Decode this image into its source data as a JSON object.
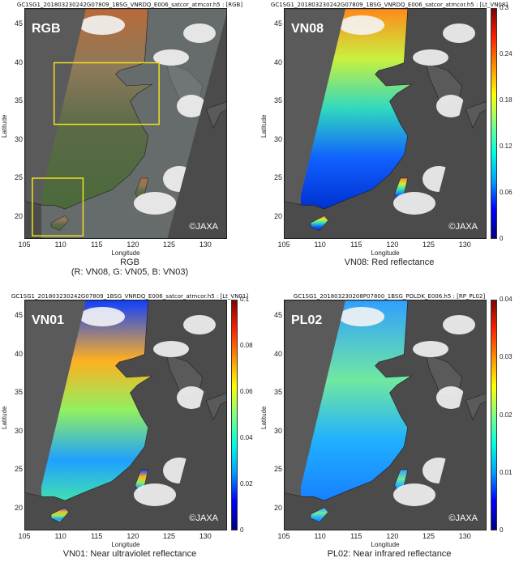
{
  "panels": [
    {
      "filename": "GC1SG1_201803230242G07809_1BSG_VNRDQ_E006_satcor_atmcor.h5 : [RGB]",
      "band": "RGB",
      "credit": "©JAXA",
      "caption": "RGB",
      "caption2": "(R: VN08, G: VN05, B: VN03)",
      "colorbar": null
    },
    {
      "filename": "GC1SG1_201803230242G07809_1BSG_VNRDQ_E006_satcor_atmcor.h5 : [Lt_VN08]",
      "band": "VN08",
      "credit": "©JAXA",
      "caption": "VN08: Red reflectance",
      "caption2": "",
      "colorbar": [
        "0.3",
        "0.24",
        "0.18",
        "0.12",
        "0.06",
        "0"
      ]
    },
    {
      "filename": "GC1SG1_201803230242G07809_1BSG_VNRDQ_E006_satcor_atmcor.h5 : [Lt_VN01]",
      "band": "VN01",
      "credit": "©JAXA",
      "caption": "VN01: Near ultraviolet reflectance",
      "caption2": "",
      "colorbar": [
        "0.1",
        "0.08",
        "0.06",
        "0.04",
        "0.02",
        "0"
      ]
    },
    {
      "filename": "GC1SG1_201803230208P07800_1BSG_POLDK_E006.h5 : [RP_PL02]",
      "band": "PL02",
      "credit": "©JAXA",
      "caption": "PL02: Near infrared reflectance",
      "caption2": "",
      "colorbar": [
        "0.04",
        "0.03",
        "0.02",
        "0.01",
        "0"
      ]
    }
  ],
  "axes": {
    "xlabel": "Longitude",
    "ylabel": "Latitude",
    "xticks": [
      "105",
      "110",
      "115",
      "120",
      "125",
      "130"
    ],
    "yticks": [
      "45",
      "40",
      "35",
      "30",
      "25",
      "20"
    ]
  },
  "colors": {
    "background": "#4b4b4b",
    "colormap": [
      "#000080",
      "#0000ff",
      "#00a0ff",
      "#00ffe0",
      "#80ff80",
      "#ffff00",
      "#ff9000",
      "#ff2000",
      "#800000"
    ]
  }
}
